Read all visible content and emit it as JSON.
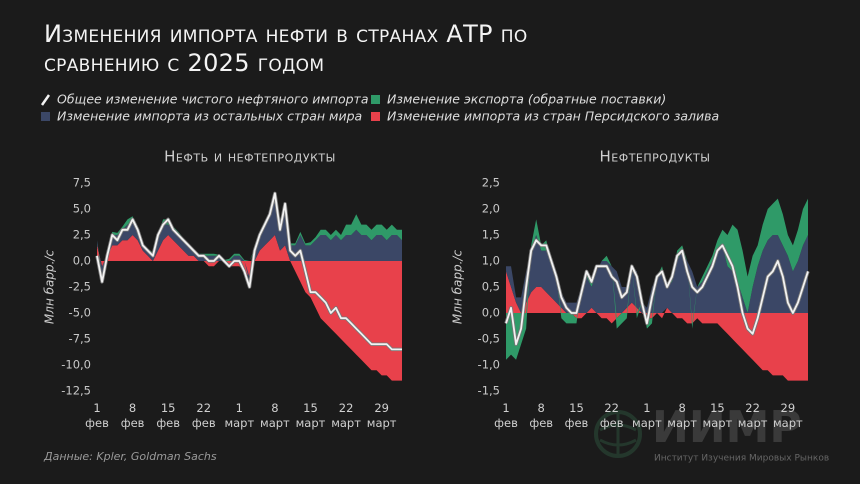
{
  "title": "Изменения импорта нефти в странах АТР по сравнению с 2025 годом",
  "source": "Данные: Kpler, Goldman Sachs",
  "watermark": {
    "logo": "ИИМР",
    "name": "Институт Изучения Мировых Рынков"
  },
  "chart_data": [
    {
      "type": "area",
      "title": "Нефть и нефтепродукты",
      "y_label": "Млн барр./с",
      "categories": [
        "1\nфев",
        null,
        null,
        null,
        null,
        null,
        null,
        "8\nфев",
        null,
        null,
        null,
        null,
        null,
        null,
        "15\nфев",
        null,
        null,
        null,
        null,
        null,
        null,
        "22\nфев",
        null,
        null,
        null,
        null,
        null,
        null,
        "1\nмарт",
        null,
        null,
        null,
        null,
        null,
        null,
        "8\nмарт",
        null,
        null,
        null,
        null,
        null,
        null,
        "15\nмарт",
        null,
        null,
        null,
        null,
        null,
        null,
        "22\nмарт",
        null,
        null,
        null,
        null,
        null,
        null,
        "29\nмарт",
        null,
        null,
        null,
        null
      ],
      "ylim": [
        -12.5,
        7.5
      ],
      "yticks": [
        {
          "value": 7.5,
          "label": "7,5"
        },
        {
          "value": 5,
          "label": "5,0"
        },
        {
          "value": 2.5,
          "label": "2,5"
        },
        {
          "value": 0,
          "label": "0,0"
        },
        {
          "value": -2.5,
          "label": "-2,5"
        },
        {
          "value": -5,
          "label": "-5,0"
        },
        {
          "value": -7.5,
          "label": "-7,5"
        },
        {
          "value": -10,
          "label": "-10,0"
        },
        {
          "value": -12.5,
          "label": "-12,5"
        }
      ],
      "series": [
        {
          "name": "Общее изменение чистого нефтяного импорта",
          "type": "line",
          "color": "#f2f2f2",
          "values": [
            0.5,
            -2,
            0.5,
            2.5,
            2,
            3,
            3,
            4,
            3,
            1.5,
            1,
            0.5,
            2.5,
            3.5,
            4,
            3,
            2.5,
            2,
            1.5,
            1,
            0.5,
            0.5,
            0,
            0,
            0.5,
            0,
            -0.5,
            0,
            0,
            -1,
            -2.5,
            1,
            2.5,
            3.5,
            4.5,
            6.5,
            3,
            5.5,
            1,
            0.5,
            1,
            -1,
            -3,
            -3,
            -3.5,
            -4,
            -5,
            -4.5,
            -5.5,
            -5.5,
            -6,
            -6.5,
            -7,
            -7.5,
            -8,
            -8,
            -8,
            -8,
            -8.5,
            -8.5,
            -8.5
          ]
        },
        {
          "name": "Изменение экспорта (обратные поставки)",
          "color": "#2f9a68",
          "values": [
            0,
            -0.5,
            0,
            0.3,
            0.2,
            0.3,
            0.5,
            0.3,
            0.2,
            0.2,
            0.2,
            0.3,
            0.5,
            0.5,
            0.5,
            0.3,
            0.3,
            0.2,
            0.2,
            0.2,
            0.2,
            0.2,
            0.2,
            0.2,
            0.1,
            0.1,
            0.2,
            0.2,
            0.2,
            0.1,
            0,
            0.2,
            0.2,
            0.3,
            0.3,
            0.5,
            0.3,
            0.5,
            0.2,
            0.2,
            0.3,
            0.2,
            0.3,
            0.3,
            0.5,
            0.5,
            0.5,
            0.5,
            0.5,
            1,
            1,
            1.5,
            1,
            1,
            1,
            1,
            1,
            1,
            1,
            0.5,
            1
          ]
        },
        {
          "name": "Изменение импорта из остальных стран мира",
          "color": "#3b4766",
          "values": [
            0.5,
            -1,
            0.5,
            1,
            1,
            1,
            1.5,
            1.5,
            1,
            0.5,
            0.5,
            0.5,
            1,
            1.5,
            1,
            1,
            1,
            1,
            1,
            0.5,
            0.5,
            0.5,
            0.5,
            0.5,
            0.5,
            0,
            0,
            0.5,
            0.5,
            0,
            -0.5,
            1,
            1.5,
            2,
            2.5,
            3.5,
            2,
            3.5,
            1.5,
            1.5,
            2.5,
            1.5,
            1.5,
            2,
            2.5,
            2.5,
            2,
            2.5,
            2,
            2.5,
            2.5,
            3,
            2.5,
            2.5,
            2,
            2.5,
            2.5,
            2,
            2.5,
            2.5,
            2
          ]
        },
        {
          "name": "Изменение импорта из стран Персидского залива",
          "color": "#e8414b",
          "values": [
            1.5,
            -0.5,
            0.5,
            1.5,
            1.5,
            2,
            2,
            2.5,
            2,
            1,
            0.5,
            0,
            1,
            2,
            2.5,
            2,
            1.5,
            1,
            0.5,
            0.5,
            0,
            0,
            -0.5,
            -0.5,
            0,
            0,
            -0.5,
            -0.5,
            -0.5,
            -1,
            -1.5,
            0,
            1,
            1.5,
            2,
            2.5,
            1,
            1.5,
            0,
            -1,
            -2,
            -3,
            -3.5,
            -4.5,
            -5.5,
            -6,
            -6.5,
            -7,
            -7.5,
            -8,
            -8.5,
            -9,
            -9.5,
            -10,
            -10.5,
            -10.5,
            -11,
            -11,
            -11.5,
            -11.5,
            -11.5
          ]
        }
      ]
    },
    {
      "type": "area",
      "title": "Нефтепродукты",
      "y_label": "Млн барр./с",
      "categories": [
        "1\nфев",
        null,
        null,
        null,
        null,
        null,
        null,
        "8\nфев",
        null,
        null,
        null,
        null,
        null,
        null,
        "15\nфев",
        null,
        null,
        null,
        null,
        null,
        null,
        "22\nфев",
        null,
        null,
        null,
        null,
        null,
        null,
        "1\nмарт",
        null,
        null,
        null,
        null,
        null,
        null,
        "8\nмарт",
        null,
        null,
        null,
        null,
        null,
        null,
        "15\nмарт",
        null,
        null,
        null,
        null,
        null,
        null,
        "22\nмарт",
        null,
        null,
        null,
        null,
        null,
        null,
        "29\nмарт",
        null,
        null,
        null,
        null
      ],
      "ylim": [
        -1.5,
        2.5
      ],
      "yticks": [
        {
          "value": 2.5,
          "label": "2,5"
        },
        {
          "value": 2,
          "label": "2,0"
        },
        {
          "value": 1.5,
          "label": "1,5"
        },
        {
          "value": 1,
          "label": "1,0"
        },
        {
          "value": 0.5,
          "label": "0,5"
        },
        {
          "value": 0,
          "label": "0,0"
        },
        {
          "value": -0.5,
          "label": "-0,5"
        },
        {
          "value": -1,
          "label": "-1,0"
        },
        {
          "value": -1.5,
          "label": "-1,5"
        }
      ],
      "series": [
        {
          "name": "Общее изменение чистого нефтяного импорта",
          "type": "line",
          "color": "#f2f2f2",
          "values": [
            -0.2,
            0.1,
            -0.6,
            -0.3,
            0.5,
            1.2,
            1.4,
            1.3,
            1.3,
            1,
            0.7,
            0.3,
            0.1,
            0,
            0,
            0.4,
            0.8,
            0.6,
            0.9,
            0.9,
            0.9,
            0.7,
            0.6,
            0.3,
            0.4,
            0.9,
            0.7,
            0.2,
            -0.2,
            0.3,
            0.7,
            0.8,
            0.5,
            0.7,
            1.1,
            1.2,
            0.8,
            0.5,
            0.4,
            0.5,
            0.7,
            0.9,
            1.2,
            1.3,
            1.1,
            0.9,
            0.5,
            0,
            -0.3,
            -0.4,
            -0.1,
            0.3,
            0.7,
            0.8,
            1,
            0.7,
            0.2,
            0,
            0.2,
            0.5,
            0.8
          ]
        },
        {
          "name": "Изменение экспорта (обратные поставки)",
          "color": "#2f9a68",
          "values": [
            -0.9,
            -0.8,
            -0.9,
            -0.6,
            -0.3,
            0.1,
            0.3,
            0.1,
            0.2,
            0.1,
            0,
            -0.1,
            -0.2,
            -0.2,
            -0.1,
            0,
            0.1,
            0.1,
            0,
            0,
            0.1,
            0,
            -0.2,
            -0.2,
            -0.1,
            0,
            -0.1,
            0,
            -0.2,
            -0.1,
            0,
            0.1,
            0,
            0.1,
            0.2,
            0.1,
            0,
            -0.1,
            0,
            0.1,
            0.1,
            0.1,
            0.2,
            0.3,
            0.6,
            0.9,
            1,
            0.9,
            0.7,
            0.6,
            0.4,
            0.5,
            0.6,
            0.6,
            0.7,
            0.6,
            0.4,
            0.5,
            0.6,
            0.7,
            0.7
          ]
        },
        {
          "name": "Изменение импорта из остальных стран мира",
          "color": "#3b4766",
          "values": [
            0.1,
            0.4,
            0.1,
            0.3,
            0.6,
            0.8,
            1,
            0.7,
            0.8,
            0.6,
            0.5,
            0.3,
            0.2,
            0.2,
            0.2,
            0.5,
            0.7,
            0.4,
            0.8,
            1,
            1,
            0.9,
            0.8,
            0.5,
            0.4,
            0.7,
            0.7,
            0.2,
            0.1,
            0.5,
            0.7,
            0.8,
            0.4,
            0.6,
            1,
            1.2,
            1,
            0.8,
            0.5,
            0.6,
            0.8,
            1,
            1.2,
            1.3,
            0.9,
            0.8,
            0.6,
            0.3,
            0,
            0.5,
            0.9,
            1.2,
            1.4,
            1.5,
            1.5,
            1.3,
            1.1,
            0.8,
            1,
            1.3,
            1.5
          ]
        },
        {
          "name": "Изменение импорта из стран Персидского залива",
          "color": "#e8414b",
          "values": [
            0.8,
            0.5,
            0.2,
            0,
            0.2,
            0.4,
            0.5,
            0.5,
            0.4,
            0.3,
            0.2,
            0.1,
            0,
            0,
            -0.1,
            -0.1,
            0,
            0.1,
            0,
            -0.1,
            -0.1,
            -0.2,
            -0.1,
            0,
            0.1,
            0.2,
            0.1,
            0,
            -0.1,
            -0.1,
            0,
            -0.1,
            0.1,
            0,
            -0.1,
            -0.1,
            -0.2,
            -0.2,
            -0.1,
            -0.2,
            -0.2,
            -0.2,
            -0.2,
            -0.3,
            -0.4,
            -0.5,
            -0.6,
            -0.7,
            -0.8,
            -0.9,
            -1,
            -1.1,
            -1.1,
            -1.2,
            -1.2,
            -1.2,
            -1.3,
            -1.3,
            -1.3,
            -1.3,
            -1.3
          ]
        }
      ]
    }
  ]
}
